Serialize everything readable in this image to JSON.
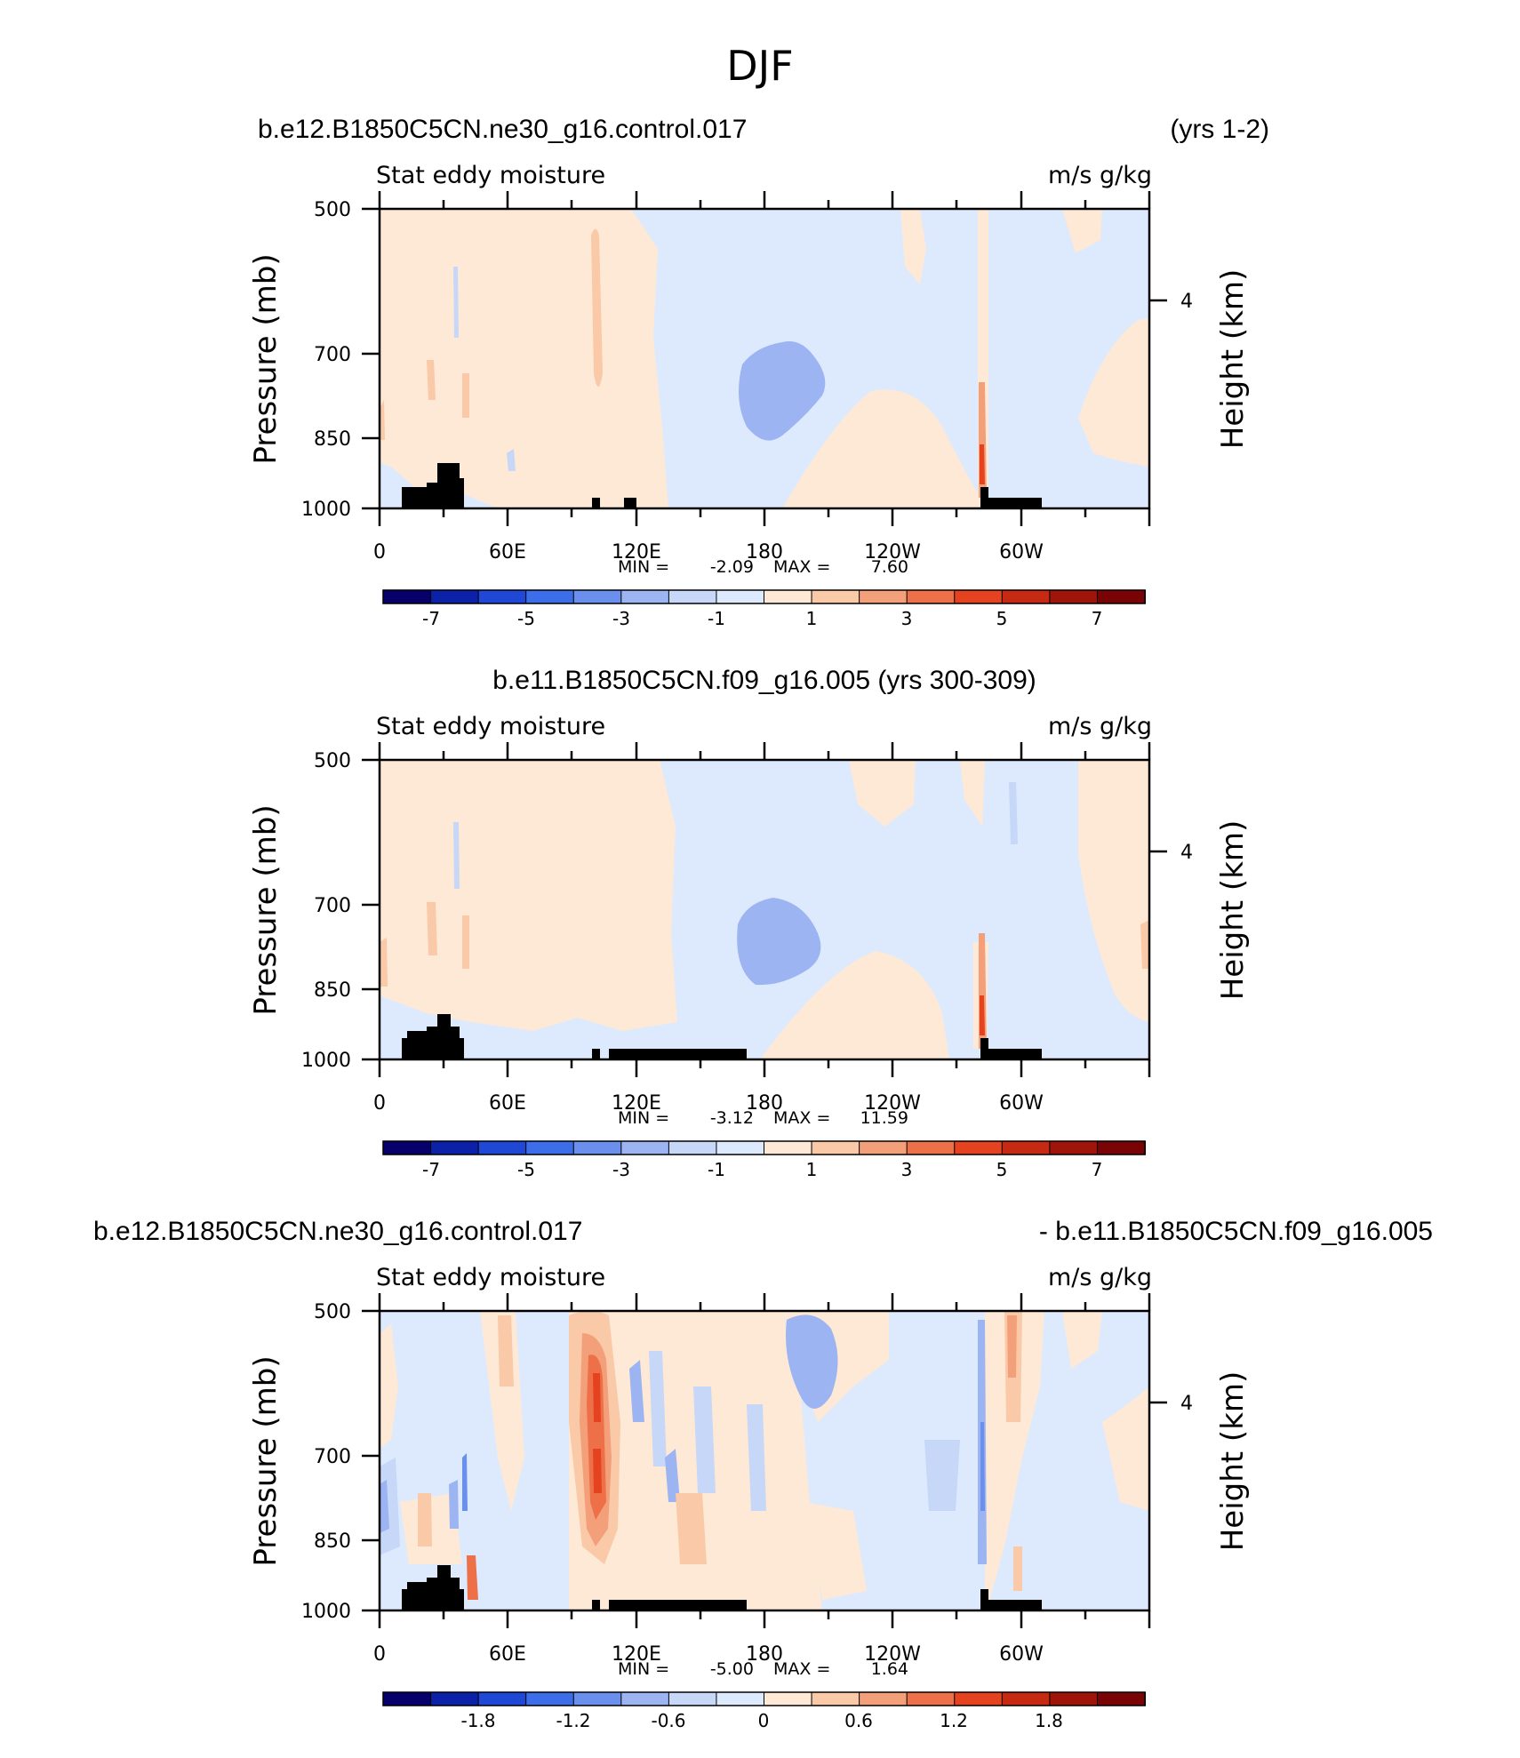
{
  "figure": {
    "title": "DJF"
  },
  "chart_data": [
    {
      "type": "heatmap",
      "run_title": "b.e12.B1850C5CN.ne30_g16.control.017",
      "run_title_right": "(yrs 1-2)",
      "left_string": "Stat eddy moisture",
      "right_string": "m/s g/kg",
      "ylabel": "Pressure (mb)",
      "ylabel_right": "Height (km)",
      "y_ticks": [
        "500",
        "700",
        "850",
        "1000"
      ],
      "y_right_ticks": [
        "4"
      ],
      "x_ticks": [
        "0",
        "60E",
        "120E",
        "180",
        "120W",
        "60W"
      ],
      "ylim": [
        1000,
        500
      ],
      "xlim": [
        0,
        360
      ],
      "min_label": "MIN =",
      "min_value": "-2.09",
      "max_label": "MAX =",
      "max_value": "7.60",
      "colorbar_labels": [
        "-7",
        "-5",
        "-3",
        "-1",
        "1",
        "3",
        "5",
        "7"
      ],
      "contour_levels": [
        -8,
        -7,
        -6,
        -5,
        -4,
        -3,
        -2,
        -1,
        0,
        1,
        2,
        3,
        4,
        5,
        6,
        7,
        8
      ]
    },
    {
      "type": "heatmap",
      "run_title": "b.e11.B1850C5CN.f09_g16.005 (yrs 300-309)",
      "left_string": "Stat eddy moisture",
      "right_string": "m/s g/kg",
      "ylabel": "Pressure (mb)",
      "ylabel_right": "Height (km)",
      "y_ticks": [
        "500",
        "700",
        "850",
        "1000"
      ],
      "y_right_ticks": [
        "4"
      ],
      "x_ticks": [
        "0",
        "60E",
        "120E",
        "180",
        "120W",
        "60W"
      ],
      "ylim": [
        1000,
        500
      ],
      "xlim": [
        0,
        360
      ],
      "min_label": "MIN =",
      "min_value": "-3.12",
      "max_label": "MAX =",
      "max_value": "11.59",
      "colorbar_labels": [
        "-7",
        "-5",
        "-3",
        "-1",
        "1",
        "3",
        "5",
        "7"
      ],
      "contour_levels": [
        -8,
        -7,
        -6,
        -5,
        -4,
        -3,
        -2,
        -1,
        0,
        1,
        2,
        3,
        4,
        5,
        6,
        7,
        8
      ]
    },
    {
      "type": "heatmap",
      "run_title": "b.e12.B1850C5CN.ne30_g16.control.017",
      "run_title_right": "- b.e11.B1850C5CN.f09_g16.005",
      "left_string": "Stat eddy moisture",
      "right_string": "m/s g/kg",
      "ylabel": "Pressure (mb)",
      "ylabel_right": "Height (km)",
      "y_ticks": [
        "500",
        "700",
        "850",
        "1000"
      ],
      "y_right_ticks": [
        "4"
      ],
      "x_ticks": [
        "0",
        "60E",
        "120E",
        "180",
        "120W",
        "60W"
      ],
      "ylim": [
        1000,
        500
      ],
      "xlim": [
        0,
        360
      ],
      "min_label": "MIN =",
      "min_value": "-5.00",
      "max_label": "MAX =",
      "max_value": "1.64",
      "colorbar_labels": [
        "-1.8",
        "-1.2",
        "-0.6",
        "0",
        "0.6",
        "1.2",
        "1.8"
      ],
      "contour_levels": [
        -2.4,
        -2.1,
        -1.8,
        -1.5,
        -1.2,
        -0.9,
        -0.6,
        -0.3,
        0,
        0.3,
        0.6,
        0.9,
        1.2,
        1.5,
        1.8,
        2.1,
        2.4
      ]
    }
  ],
  "colors": {
    "palette": [
      "#08006a",
      "#0a21a8",
      "#1f48d6",
      "#3b6ee8",
      "#6a8fec",
      "#9cb4f2",
      "#c6d7f8",
      "#ddeafd",
      "#fde9d6",
      "#f9c9a8",
      "#f3a07a",
      "#ed7049",
      "#e5431f",
      "#c72a12",
      "#a0150a",
      "#7a0306"
    ],
    "topography": "#000000"
  }
}
